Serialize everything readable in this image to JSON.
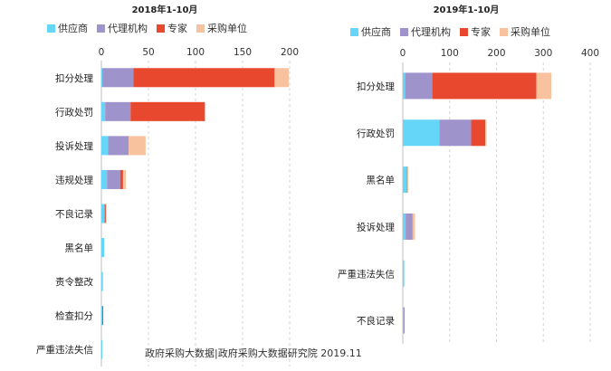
{
  "series_colors": {
    "供应商": "#66d6f8",
    "代理机构": "#9f93cc",
    "专家": "#e8482d",
    "采购单位": "#f9c29e"
  },
  "source": "政府采购大数据|政府采购大数据研究院 2019.11",
  "chart_data": [
    {
      "type": "bar",
      "orientation": "horizontal",
      "stacked": true,
      "title": "2018年1-10月",
      "xlim": [
        0,
        200
      ],
      "xticks": [
        "0",
        "50",
        "100",
        "150",
        "200"
      ],
      "grid": true,
      "legend": "top",
      "categories": [
        "扣分处理",
        "行政处罚",
        "投诉处理",
        "违规处理",
        "不良记录",
        "黑名单",
        "责令整改",
        "检查扣分",
        "严重违法失信"
      ],
      "series": [
        {
          "name": "供应商",
          "values": [
            1,
            4,
            7,
            6,
            3,
            3,
            1,
            1,
            1
          ]
        },
        {
          "name": "代理机构",
          "values": [
            33,
            27,
            22,
            14,
            1,
            0,
            0,
            0,
            0
          ]
        },
        {
          "name": "专家",
          "values": [
            150,
            79,
            0,
            3,
            1,
            0,
            0,
            1,
            0
          ]
        },
        {
          "name": "采购单位",
          "values": [
            15,
            0,
            18,
            3,
            0,
            0,
            1,
            0,
            0
          ]
        }
      ]
    },
    {
      "type": "bar",
      "orientation": "horizontal",
      "stacked": true,
      "title": "2019年1-10月",
      "xlim": [
        0,
        400
      ],
      "xticks": [
        "0",
        "100",
        "200",
        "300",
        "400"
      ],
      "grid": true,
      "legend": "top",
      "categories": [
        "扣分处理",
        "行政处罚",
        "黑名单",
        "投诉处理",
        "严重违法失信",
        "不良记录"
      ],
      "series": [
        {
          "name": "供应商",
          "values": [
            5,
            78,
            8,
            6,
            3,
            2
          ]
        },
        {
          "name": "代理机构",
          "values": [
            58,
            68,
            2,
            15,
            0,
            2
          ]
        },
        {
          "name": "专家",
          "values": [
            222,
            30,
            0,
            0,
            0,
            0
          ]
        },
        {
          "name": "采购单位",
          "values": [
            32,
            3,
            2,
            5,
            0,
            0
          ]
        }
      ]
    }
  ]
}
